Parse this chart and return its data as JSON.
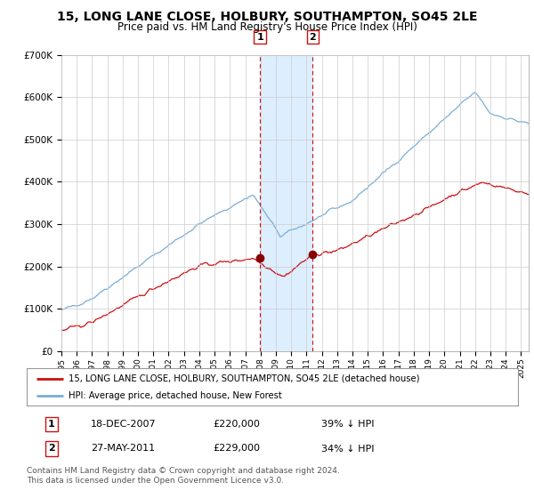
{
  "title": "15, LONG LANE CLOSE, HOLBURY, SOUTHAMPTON, SO45 2LE",
  "subtitle": "Price paid vs. HM Land Registry's House Price Index (HPI)",
  "title_fontsize": 10,
  "subtitle_fontsize": 8.5,
  "ylim": [
    0,
    700000
  ],
  "yticks": [
    0,
    100000,
    200000,
    300000,
    400000,
    500000,
    600000,
    700000
  ],
  "ytick_labels": [
    "£0",
    "£100K",
    "£200K",
    "£300K",
    "£400K",
    "£500K",
    "£600K",
    "£700K"
  ],
  "hpi_color": "#7aaed6",
  "price_color": "#cc1111",
  "marker_color": "#880000",
  "grid_color": "#cccccc",
  "bg_color": "#ffffff",
  "shade_color": "#ddeeff",
  "vline_color": "#cc1111",
  "transaction1_date": 2007.96,
  "transaction1_price": 220000,
  "transaction1_label": "1",
  "transaction2_date": 2011.4,
  "transaction2_price": 229000,
  "transaction2_label": "2",
  "shade_start": 2007.96,
  "shade_end": 2011.4,
  "legend_entries": [
    "15, LONG LANE CLOSE, HOLBURY, SOUTHAMPTON, SO45 2LE (detached house)",
    "HPI: Average price, detached house, New Forest"
  ],
  "table_rows": [
    [
      "1",
      "18-DEC-2007",
      "£220,000",
      "39% ↓ HPI"
    ],
    [
      "2",
      "27-MAY-2011",
      "£229,000",
      "34% ↓ HPI"
    ]
  ],
  "footnote": "Contains HM Land Registry data © Crown copyright and database right 2024.\nThis data is licensed under the Open Government Licence v3.0.",
  "xmin": 1995.0,
  "xmax": 2025.5
}
